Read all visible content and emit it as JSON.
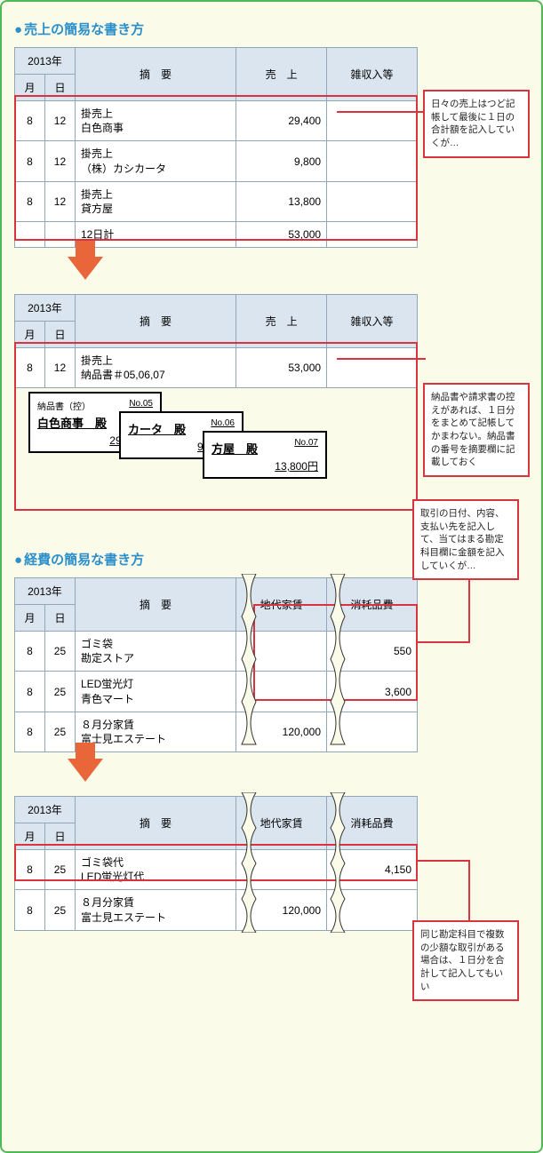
{
  "colors": {
    "page_bg": "#fbfbea",
    "page_border": "#4fb956",
    "table_header_bg": "#dbe5ef",
    "table_border": "#8fa8b8",
    "accent_red": "#d9333f",
    "accent_blue": "#2a8fca",
    "arrow": "#e8663a"
  },
  "section1": {
    "title": "売上の簡易な書き方",
    "table1": {
      "year_label": "2013年",
      "headers": {
        "month": "月",
        "day": "日",
        "desc": "摘　要",
        "sales": "売　上",
        "misc": "雑収入等"
      },
      "rows": [
        {
          "m": "8",
          "d": "12",
          "desc": "掛売上\n白色商事",
          "sales": "29,400",
          "misc": ""
        },
        {
          "m": "8",
          "d": "12",
          "desc": "掛売上\n（株）カシカータ",
          "sales": "9,800",
          "misc": ""
        },
        {
          "m": "8",
          "d": "12",
          "desc": "掛売上\n貸方屋",
          "sales": "13,800",
          "misc": ""
        },
        {
          "m": "",
          "d": "",
          "desc": "12日計",
          "sales": "53,000",
          "misc": ""
        }
      ]
    },
    "callout1": "日々の売上はつど記帳して最後に１日の合計額を記入していくが…",
    "table2": {
      "year_label": "2013年",
      "headers": {
        "month": "月",
        "day": "日",
        "desc": "摘　要",
        "sales": "売　上",
        "misc": "雑収入等"
      },
      "rows": [
        {
          "m": "8",
          "d": "12",
          "desc": "掛売上\n納品書＃05,06,07",
          "sales": "53,000",
          "misc": ""
        }
      ]
    },
    "slips": [
      {
        "header": "納品書（控）",
        "no": "No.05",
        "name": "白色商事　殿",
        "amount": "29,400円"
      },
      {
        "header": "",
        "no": "No.06",
        "name": "カータ　殿",
        "amount": "9,800円"
      },
      {
        "header": "",
        "no": "No.07",
        "name": "方屋　殿",
        "amount": "13,800円"
      }
    ],
    "callout2": "納品書や請求書の控えがあれば、１日分をまとめて記帳してかまわない。納品書の番号を摘要欄に記載しておく"
  },
  "section2": {
    "title": "経費の簡易な書き方",
    "callout1": "取引の日付、内容、支払い先を記入して、当てはまる勘定科目欄に金額を記入していくが…",
    "table1": {
      "year_label": "2013年",
      "headers": {
        "month": "月",
        "day": "日",
        "desc": "摘　要",
        "rent": "地代家賃",
        "supply": "消耗品費"
      },
      "rows": [
        {
          "m": "8",
          "d": "25",
          "desc": "ゴミ袋\n勘定ストア",
          "rent": "",
          "supply": "550"
        },
        {
          "m": "8",
          "d": "25",
          "desc": "LED蛍光灯\n青色マート",
          "rent": "",
          "supply": "3,600"
        },
        {
          "m": "8",
          "d": "25",
          "desc": "８月分家賃\n富士見エステート",
          "rent": "120,000",
          "supply": ""
        }
      ]
    },
    "table2": {
      "year_label": "2013年",
      "headers": {
        "month": "月",
        "day": "日",
        "desc": "摘　要",
        "rent": "地代家賃",
        "supply": "消耗品費"
      },
      "rows": [
        {
          "m": "8",
          "d": "25",
          "desc": "ゴミ袋代\nLED蛍光灯代",
          "rent": "",
          "supply": "4,150"
        },
        {
          "m": "8",
          "d": "25",
          "desc": "８月分家賃\n富士見エステート",
          "rent": "120,000",
          "supply": ""
        }
      ]
    },
    "callout2": "同じ勘定科目で複数の少額な取引がある場合は、１日分を合計して記入してもいい"
  }
}
